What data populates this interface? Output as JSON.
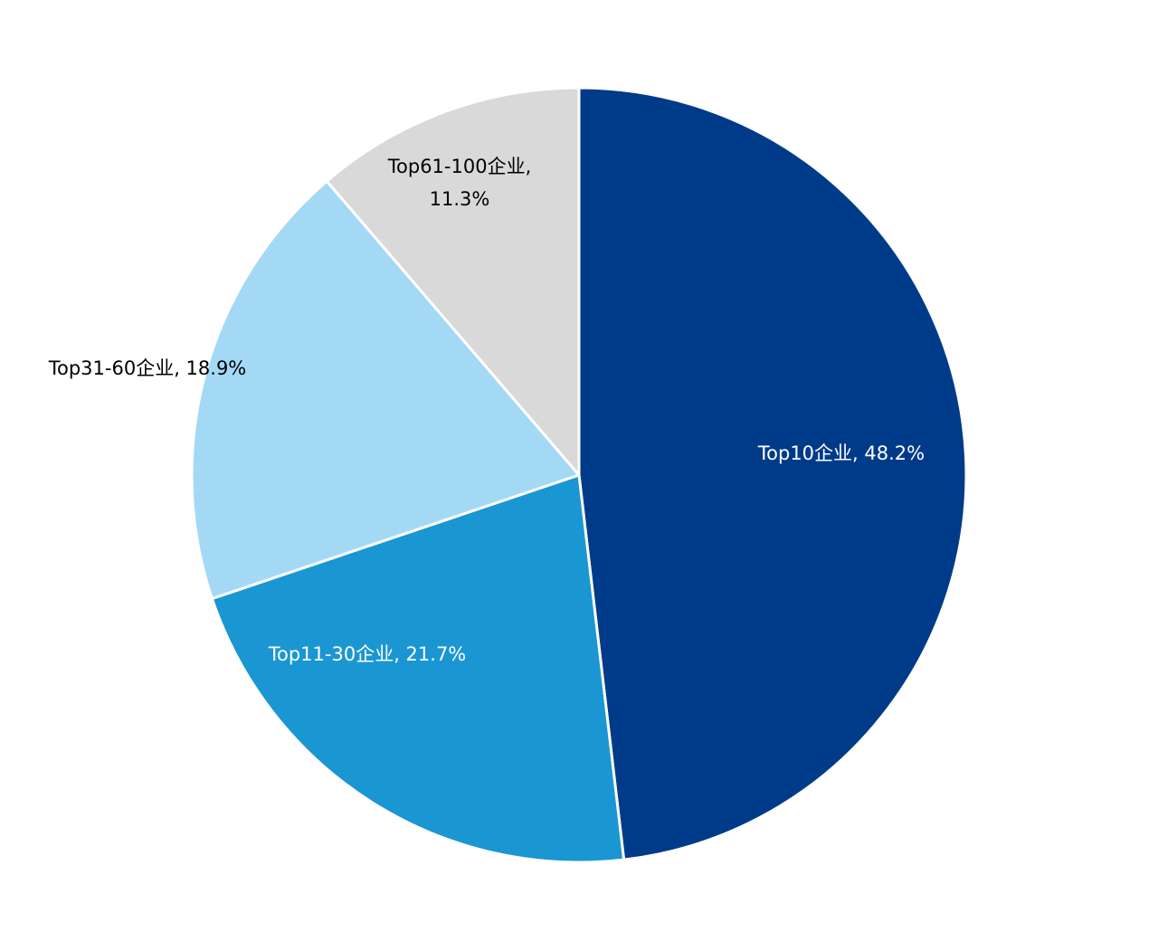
{
  "chart_data": {
    "type": "pie",
    "title": "",
    "slices": [
      {
        "label": "Top10企业",
        "value": 48.2,
        "value_text": "48.2%",
        "color": "#003B8A",
        "label_color": "#ffffff"
      },
      {
        "label": "Top11-30企业",
        "value": 21.7,
        "value_text": "21.7%",
        "color": "#1A96D3",
        "label_color": "#ffffff"
      },
      {
        "label": "Top31-60企业",
        "value": 18.9,
        "value_text": "18.9%",
        "color": "#A3D9F5",
        "label_color": "#000000"
      },
      {
        "label": "Top61-100企业",
        "value": 11.3,
        "value_text": "11.3%",
        "color": "#D9D9D9",
        "label_color": "#000000"
      }
    ],
    "start_angle": "12 o'clock",
    "direction": "clockwise",
    "legend": "none",
    "data_labels": "category and percent"
  }
}
